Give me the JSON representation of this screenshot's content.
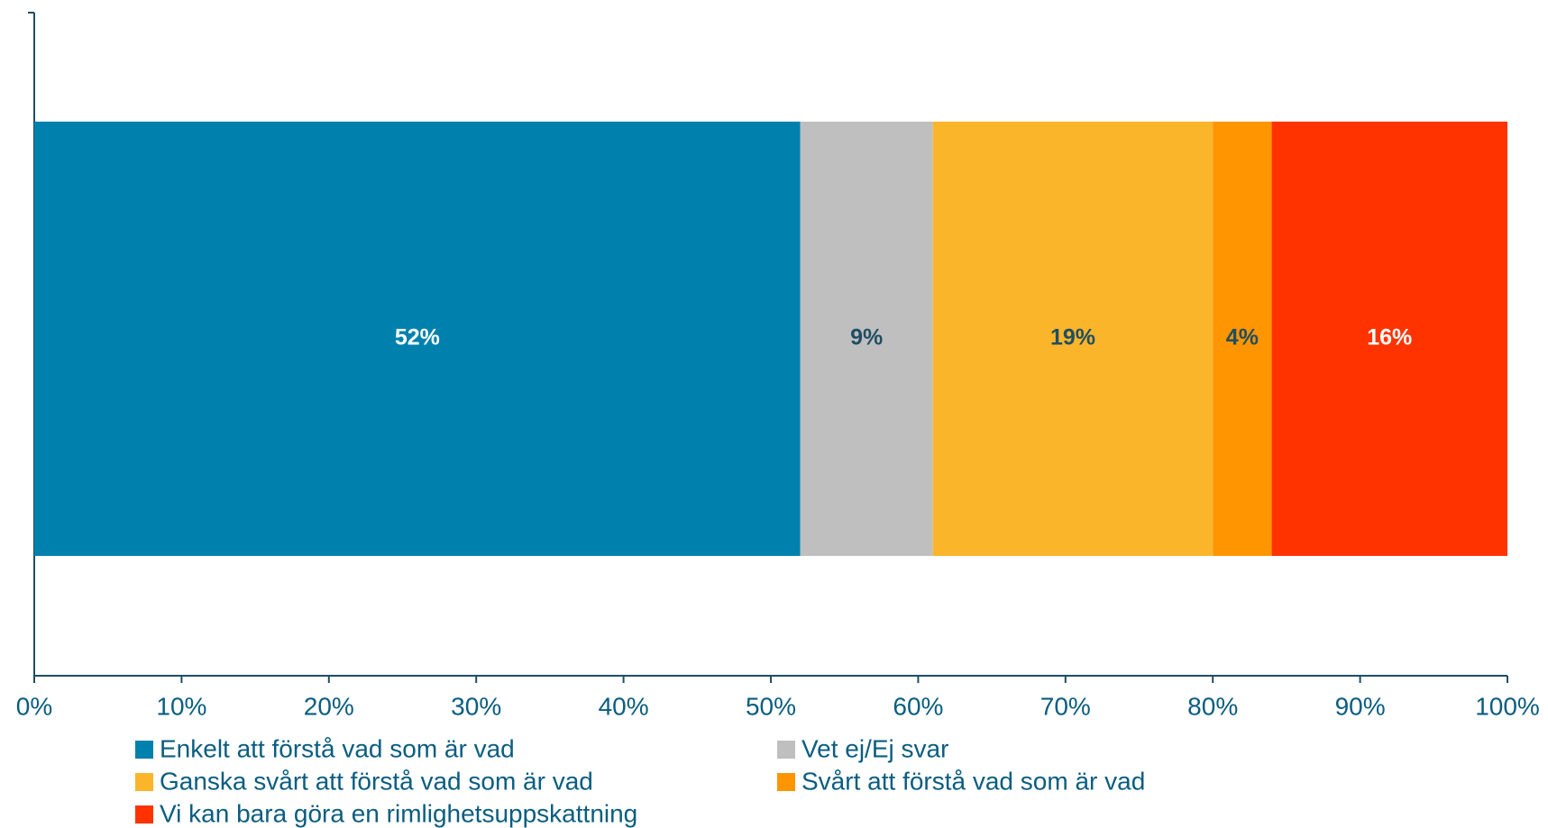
{
  "chart_data": {
    "type": "stacked-bar-horizontal",
    "categories": [
      null
    ],
    "series": [
      {
        "name": "Enkelt att förstå vad som är vad",
        "color": "#0081ad",
        "label_color": "#ffffff",
        "values": [
          52
        ],
        "value_labels": [
          "52%"
        ]
      },
      {
        "name": "Vet ej/Ej svar",
        "color": "#bfbfbf",
        "label_color": "#1f4e63",
        "values": [
          9
        ],
        "value_labels": [
          "9%"
        ]
      },
      {
        "name": "Ganska svårt att förstå vad som är vad",
        "color": "#fbb52b",
        "label_color": "#1f4e63",
        "values": [
          19
        ],
        "value_labels": [
          "19%"
        ]
      },
      {
        "name": "Svårt att förstå vad som är vad",
        "color": "#ff9500",
        "label_color": "#1f4e63",
        "values": [
          4
        ],
        "value_labels": [
          "4%"
        ]
      },
      {
        "name": "Vi kan bara göra en rimlighetsuppskattning",
        "color": "#ff3300",
        "label_color": "#ffffff",
        "values": [
          16
        ],
        "value_labels": [
          "16%"
        ]
      }
    ],
    "xlim": [
      0,
      100
    ],
    "xticks": [
      {
        "value": 0,
        "label": "0%"
      },
      {
        "value": 10,
        "label": "10%"
      },
      {
        "value": 20,
        "label": "20%"
      },
      {
        "value": 30,
        "label": "30%"
      },
      {
        "value": 40,
        "label": "40%"
      },
      {
        "value": 50,
        "label": "50%"
      },
      {
        "value": 60,
        "label": "60%"
      },
      {
        "value": 70,
        "label": "70%"
      },
      {
        "value": 80,
        "label": "80%"
      },
      {
        "value": 90,
        "label": "90%"
      },
      {
        "value": 100,
        "label": "100%"
      }
    ],
    "legend": "bottom"
  }
}
